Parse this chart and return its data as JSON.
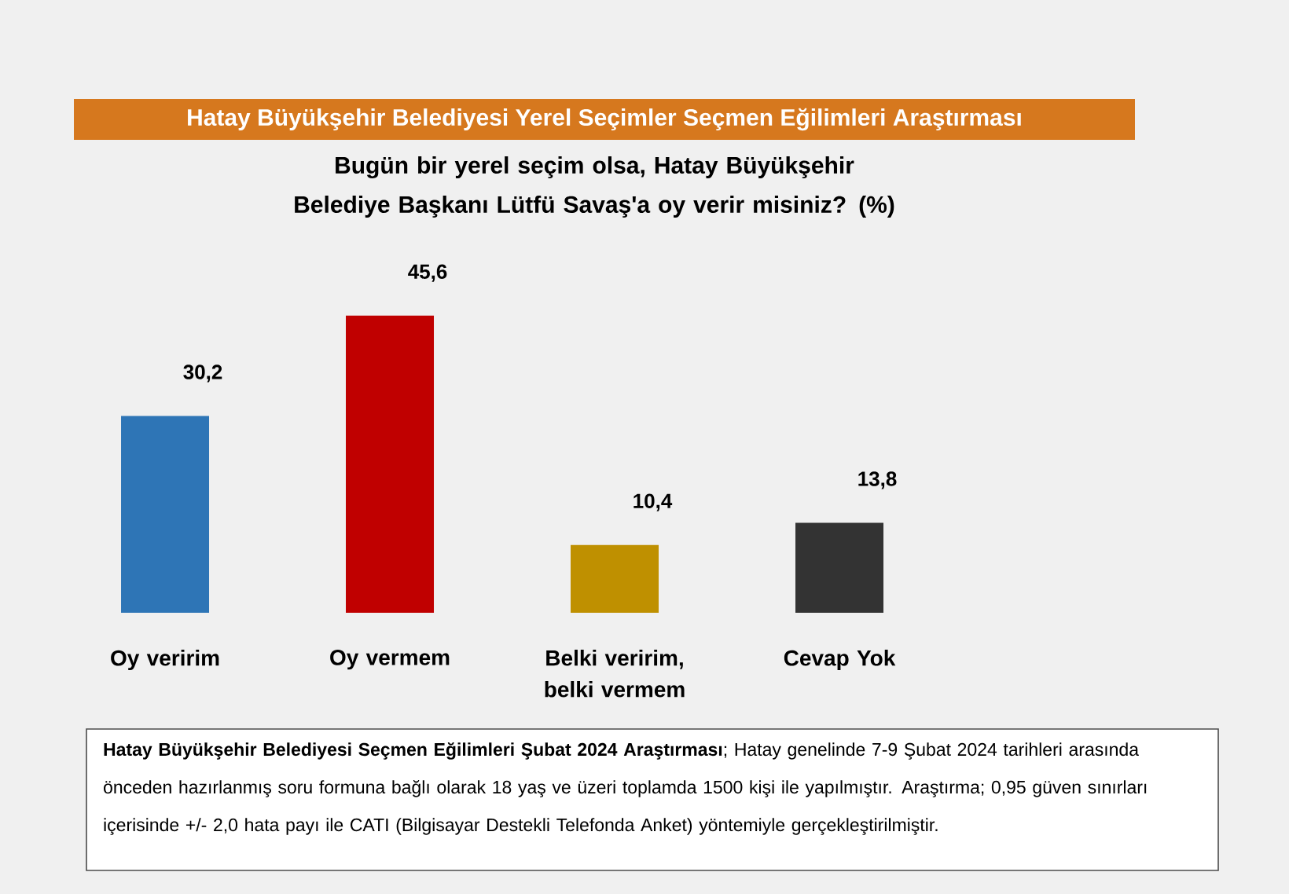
{
  "chart_data": {
    "type": "bar",
    "title": "Hatay Büyükşehir Belediyesi Yerel Seçimler Seçmen Eğilimleri Araştırması",
    "subtitle": "Bugün bir yerel seçim olsa, Hatay Büyükşehir Belediye Başkanı Lütfü Savaş'a oy verir misiniz? (%)",
    "categories": [
      "Oy veririm",
      "Oy vermem",
      "Belki veririm, belki vermem",
      "Cevap Yok"
    ],
    "values": [
      30.2,
      45.6,
      10.4,
      13.8
    ],
    "value_labels": [
      "30,2",
      "45,6",
      "10,4",
      "13,8"
    ],
    "colors": [
      "#2e75b6",
      "#c00000",
      "#bf9000",
      "#333333"
    ],
    "annotations": [
      "**Hatay Büyükşehir Belediyesi Seçmen Eğilimleri Şubat 2024 Araştırması**; Hatay genelinde 7-9 Şubat 2024 tarihleri arasında önceden hazırlanmış soru formuna bağlı olarak 18 yaş ve üzeri toplamda 1500 kişi ile yapılmıştır. Araştırma; 0,95 güven sınırları içerisinde +/- 2,0 hata payı ile CATI (Bilgisayar Destekli Telefonda Anket) yöntemiyle gerçekleştirilmiştir."
    ]
  }
}
